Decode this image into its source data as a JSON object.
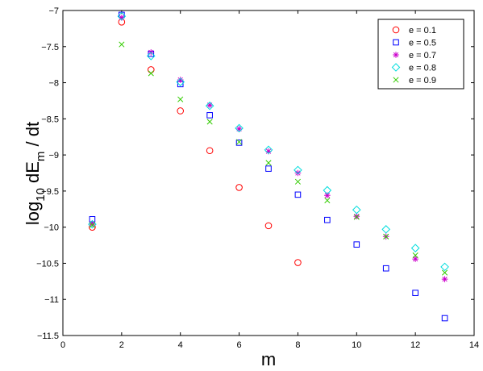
{
  "chart_data": {
    "type": "scatter",
    "title": "",
    "xlabel": "m",
    "ylabel_main": "log",
    "ylabel_sub": "10",
    "ylabel_mid": " dE",
    "ylabel_sub2": "m",
    "ylabel_end": " / dt",
    "xlim": [
      0,
      14
    ],
    "ylim": [
      -11.5,
      -7
    ],
    "x_ticks": [
      0,
      2,
      4,
      6,
      8,
      10,
      12,
      14
    ],
    "x_tick_labels": [
      "0",
      "2",
      "4",
      "6",
      "8",
      "10",
      "12",
      "14"
    ],
    "y_ticks": [
      -7,
      -7.5,
      -8,
      -8.5,
      -9,
      -9.5,
      -10,
      -10.5,
      -11,
      -11.5
    ],
    "y_tick_labels": [
      "-7",
      "-7.5",
      "-8",
      "-8.5",
      "-9",
      "-9.5",
      "-10",
      "-10.5",
      "-11",
      "-11.5"
    ],
    "grid": false,
    "legend_position": "top-right",
    "series": [
      {
        "name": "e = 0.1",
        "marker": "circle",
        "color": "#ff0000",
        "x": [
          1,
          2,
          3,
          4,
          5,
          6,
          7,
          8
        ],
        "y": [
          -10.0,
          -7.16,
          -7.82,
          -8.39,
          -8.94,
          -9.45,
          -9.98,
          -10.49
        ]
      },
      {
        "name": "e = 0.5",
        "marker": "square",
        "color": "#0000ff",
        "x": [
          1,
          2,
          3,
          4,
          5,
          6,
          7,
          8,
          9,
          10,
          11,
          12,
          13
        ],
        "y": [
          -9.89,
          -7.06,
          -7.6,
          -8.02,
          -8.45,
          -8.83,
          -9.19,
          -9.55,
          -9.9,
          -10.24,
          -10.57,
          -10.91,
          -11.26
        ]
      },
      {
        "name": "e = 0.7",
        "marker": "star",
        "color": "#cc00cc",
        "x": [
          1,
          2,
          3,
          4,
          5,
          6,
          7,
          8,
          9,
          10,
          11,
          12,
          13
        ],
        "y": [
          -9.95,
          -7.1,
          -7.58,
          -7.96,
          -8.31,
          -8.64,
          -8.95,
          -9.25,
          -9.56,
          -9.85,
          -10.13,
          -10.44,
          -10.72
        ]
      },
      {
        "name": "e = 0.8",
        "marker": "diamond",
        "color": "#00dddd",
        "x": [
          1,
          2,
          3,
          4,
          5,
          6,
          7,
          8,
          9,
          10,
          11,
          12,
          13
        ],
        "y": [
          -9.96,
          -7.08,
          -7.63,
          -7.99,
          -8.32,
          -8.63,
          -8.93,
          -9.21,
          -9.49,
          -9.76,
          -10.03,
          -10.29,
          -10.55
        ]
      },
      {
        "name": "e = 0.9",
        "marker": "x",
        "color": "#33cc00",
        "x": [
          1,
          2,
          3,
          4,
          5,
          6,
          7,
          8,
          9,
          10,
          11,
          12,
          13
        ],
        "y": [
          -9.97,
          -7.47,
          -7.87,
          -8.23,
          -8.54,
          -8.82,
          -9.11,
          -9.37,
          -9.63,
          -9.86,
          -10.13,
          -10.39,
          -10.63
        ]
      }
    ]
  }
}
